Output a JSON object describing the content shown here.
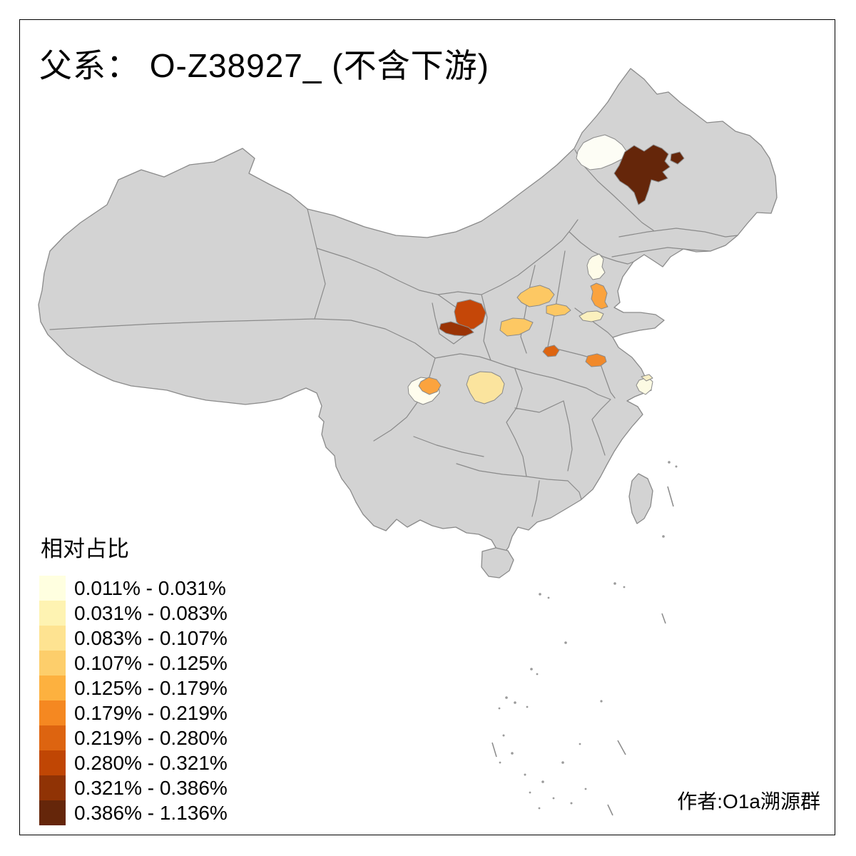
{
  "title": "父系： O-Z38927_ (不含下游)",
  "attribution": "作者:O1a溯源群",
  "legend": {
    "title": "相对占比",
    "classes": [
      {
        "label": "0.011% - 0.031%",
        "color": "#FFFFE0"
      },
      {
        "label": "0.031% - 0.083%",
        "color": "#FEF3B2"
      },
      {
        "label": "0.083% - 0.107%",
        "color": "#FEE391"
      },
      {
        "label": "0.107% - 0.125%",
        "color": "#FDCE6B"
      },
      {
        "label": "0.125% - 0.179%",
        "color": "#FDB13F"
      },
      {
        "label": "0.179% - 0.219%",
        "color": "#F58821"
      },
      {
        "label": "0.219% - 0.280%",
        "color": "#DD6410"
      },
      {
        "label": "0.280% - 0.321%",
        "color": "#C04604"
      },
      {
        "label": "0.321% - 0.386%",
        "color": "#903305"
      },
      {
        "label": "0.386% - 1.136%",
        "color": "#65260A"
      }
    ]
  },
  "map": {
    "land_color": "#D3D3D3",
    "border_color": "#8A8A8A",
    "sea_color": "#FFFFFF",
    "frame_color": "#000000",
    "regions": [
      {
        "id": "heilongjiang-main",
        "class": "0.386% - 1.136%",
        "fill": "#65260A"
      },
      {
        "id": "heilongjiang-city",
        "class": "0.386% - 1.136%",
        "fill": "#65260A"
      },
      {
        "id": "nenjiang-west",
        "class": "0.011% - 0.031%",
        "fill": "#FDFDF5"
      },
      {
        "id": "beijing",
        "class": "0.011% - 0.031%",
        "fill": "#FEFCE9"
      },
      {
        "id": "tianjin",
        "class": "0.125% - 0.179%",
        "fill": "#FBA33E"
      },
      {
        "id": "shanxi-north",
        "class": "0.107% - 0.125%",
        "fill": "#FDC863"
      },
      {
        "id": "shanxi-east",
        "class": "0.107% - 0.125%",
        "fill": "#FDC863"
      },
      {
        "id": "shanxi-southwest",
        "class": "0.107% - 0.125%",
        "fill": "#FDC863"
      },
      {
        "id": "ningxia-north",
        "class": "0.280% - 0.321%",
        "fill": "#C54708"
      },
      {
        "id": "ningxia-south",
        "class": "0.321% - 0.386%",
        "fill": "#9A3305"
      },
      {
        "id": "henan-west",
        "class": "0.219% - 0.280%",
        "fill": "#DD6410"
      },
      {
        "id": "shandong-west",
        "class": "0.031% - 0.083%",
        "fill": "#FBF0BE"
      },
      {
        "id": "anhui-north",
        "class": "0.179% - 0.219%",
        "fill": "#F1892A"
      },
      {
        "id": "sichuan-southwest",
        "class": "0.011% - 0.031%",
        "fill": "#FFFDEE"
      },
      {
        "id": "chengdu",
        "class": "0.125% - 0.179%",
        "fill": "#FBA33E"
      },
      {
        "id": "sichuan-east",
        "class": "0.083% - 0.107%",
        "fill": "#FBE49E"
      },
      {
        "id": "jiangsu-south",
        "class": "0.011% - 0.031%",
        "fill": "#FCFAE3"
      },
      {
        "id": "jiangsu-south-2",
        "class": "0.031% - 0.083%",
        "fill": "#F7EFC6"
      }
    ]
  }
}
